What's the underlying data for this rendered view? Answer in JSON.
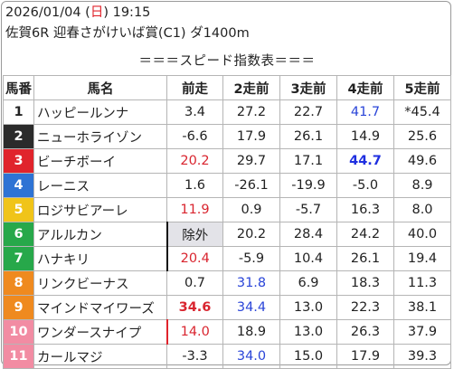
{
  "header": {
    "date_prefix": "2026/01/04 (",
    "weekday": "日",
    "date_suffix": ") 19:15",
    "race": "佐賀6R 迎春さがけいば賞(C1) ダ1400m",
    "table_title": "＝＝＝スピード指数表＝＝＝"
  },
  "columns": [
    "馬番",
    "馬名",
    "前走",
    "2走前",
    "3走前",
    "4走前",
    "5走前"
  ],
  "colors": {
    "weekday": "#e0242c",
    "blue": "#2a45d8",
    "red": "#d9252f",
    "gray_cell": "#e3e3e8"
  },
  "rows": [
    {
      "num": "1",
      "name": "ハッピールンナ",
      "v": [
        "3.4",
        "27.2",
        "22.7",
        "41.7",
        "*45.4"
      ],
      "bg": "#ffffff",
      "fg": "#222222"
    },
    {
      "num": "2",
      "name": "ニューホライゾン",
      "v": [
        "-6.6",
        "17.9",
        "26.1",
        "14.9",
        "25.6"
      ],
      "bg": "#2b2b2b",
      "fg": "#ffffff"
    },
    {
      "num": "3",
      "name": "ビーチボーイ",
      "v": [
        "20.2",
        "29.7",
        "17.1",
        "44.7",
        "49.6"
      ],
      "bg": "#e0242c",
      "fg": "#ffffff"
    },
    {
      "num": "4",
      "name": "レーニス",
      "v": [
        "1.6",
        "-26.1",
        "-19.9",
        "-5.0",
        "8.9"
      ],
      "bg": "#2e73d4",
      "fg": "#ffffff"
    },
    {
      "num": "5",
      "name": "ロジサビアーレ",
      "v": [
        "11.9",
        "0.9",
        "-5.7",
        "16.3",
        "8.0"
      ],
      "bg": "#f0c419",
      "fg": "#ffffff"
    },
    {
      "num": "6",
      "name": "アルルカン",
      "v": [
        "除外",
        "20.2",
        "28.4",
        "24.2",
        "40.0"
      ],
      "bg": "#27a84a",
      "fg": "#ffffff"
    },
    {
      "num": "7",
      "name": "ハナキリ",
      "v": [
        "20.4",
        "-5.9",
        "10.4",
        "26.1",
        "19.4"
      ],
      "bg": "#27a84a",
      "fg": "#ffffff"
    },
    {
      "num": "8",
      "name": "リンクビーナス",
      "v": [
        "0.7",
        "31.8",
        "6.9",
        "18.3",
        "11.3"
      ],
      "bg": "#ef8a1f",
      "fg": "#ffffff"
    },
    {
      "num": "9",
      "name": "マインドマイワーズ",
      "v": [
        "34.6",
        "34.4",
        "13.0",
        "22.3",
        "38.1"
      ],
      "bg": "#ef8a1f",
      "fg": "#ffffff"
    },
    {
      "num": "10",
      "name": "ワンダースナイプ",
      "v": [
        "14.0",
        "18.9",
        "13.0",
        "26.3",
        "37.9"
      ],
      "bg": "#f28ca3",
      "fg": "#ffffff"
    },
    {
      "num": "11",
      "name": "カールマジ",
      "v": [
        "-3.3",
        "34.0",
        "15.0",
        "17.9",
        "39.3"
      ],
      "bg": "#f28ca3",
      "fg": "#ffffff"
    }
  ],
  "cell_styles": {
    "0-3": "blue",
    "2-0": "red",
    "2-3": "blue-bold",
    "4-0": "red",
    "5-0": "gray",
    "6-0": "red",
    "7-1": "blue",
    "8-0": "red-bold",
    "8-1": "blue",
    "9-0": "red",
    "10-1": "blue"
  },
  "cell_borders": {
    "5-0": "black",
    "6-0": "black",
    "9-0": "red"
  }
}
